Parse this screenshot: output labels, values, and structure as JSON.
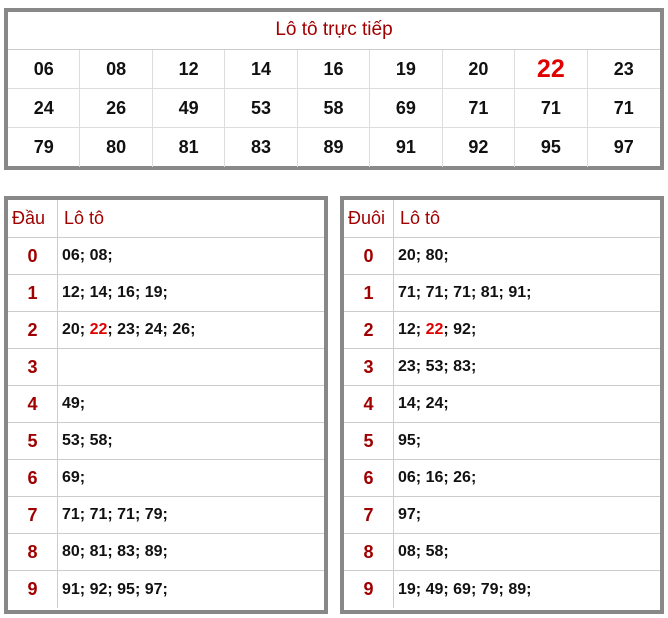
{
  "live": {
    "title": "Lô tô trực tiếp",
    "numbers": [
      "06",
      "08",
      "12",
      "14",
      "16",
      "19",
      "20",
      "22",
      "23",
      "24",
      "26",
      "49",
      "53",
      "58",
      "69",
      "71",
      "71",
      "71",
      "79",
      "80",
      "81",
      "83",
      "89",
      "91",
      "92",
      "95",
      "97"
    ],
    "highlight": "22"
  },
  "dau_table": {
    "header_col1": "Đầu",
    "header_col2": "Lô tô",
    "rows": [
      {
        "key": "0",
        "items": [
          "06",
          "08"
        ]
      },
      {
        "key": "1",
        "items": [
          "12",
          "14",
          "16",
          "19"
        ]
      },
      {
        "key": "2",
        "items": [
          "20",
          "22",
          "23",
          "24",
          "26"
        ]
      },
      {
        "key": "3",
        "items": []
      },
      {
        "key": "4",
        "items": [
          "49"
        ]
      },
      {
        "key": "5",
        "items": [
          "53",
          "58"
        ]
      },
      {
        "key": "6",
        "items": [
          "69"
        ]
      },
      {
        "key": "7",
        "items": [
          "71",
          "71",
          "71",
          "79"
        ]
      },
      {
        "key": "8",
        "items": [
          "80",
          "81",
          "83",
          "89"
        ]
      },
      {
        "key": "9",
        "items": [
          "91",
          "92",
          "95",
          "97"
        ]
      }
    ]
  },
  "duoi_table": {
    "header_col1": "Đuôi",
    "header_col2": "Lô tô",
    "rows": [
      {
        "key": "0",
        "items": [
          "20",
          "80"
        ]
      },
      {
        "key": "1",
        "items": [
          "71",
          "71",
          "71",
          "81",
          "91"
        ]
      },
      {
        "key": "2",
        "items": [
          "12",
          "22",
          "92"
        ]
      },
      {
        "key": "3",
        "items": [
          "23",
          "53",
          "83"
        ]
      },
      {
        "key": "4",
        "items": [
          "14",
          "24"
        ]
      },
      {
        "key": "5",
        "items": [
          "95"
        ]
      },
      {
        "key": "6",
        "items": [
          "06",
          "16",
          "26"
        ]
      },
      {
        "key": "7",
        "items": [
          "97"
        ]
      },
      {
        "key": "8",
        "items": [
          "08",
          "58"
        ]
      },
      {
        "key": "9",
        "items": [
          "19",
          "49",
          "69",
          "79",
          "89"
        ]
      }
    ]
  },
  "colors": {
    "accent": "#a00000",
    "highlight": "#e00000",
    "border": "#888888"
  }
}
